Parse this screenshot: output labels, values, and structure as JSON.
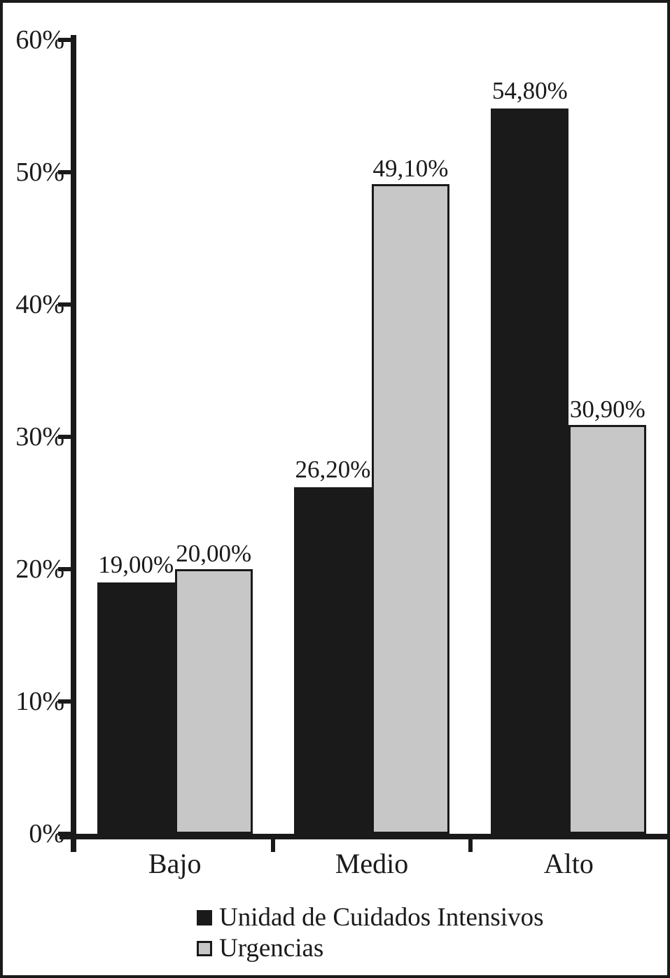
{
  "figure": {
    "background": "#ffffff",
    "frame_color": "#1a1a1a",
    "text_color": "#1a1a1a"
  },
  "chart_data": {
    "type": "bar",
    "title": "",
    "categories": [
      "Bajo",
      "Medio",
      "Alto"
    ],
    "series": [
      {
        "name": "Unidad de Cuidados Intensivos",
        "color": "#1a1a1a",
        "values": [
          19.0,
          26.2,
          54.8
        ],
        "value_labels": [
          "19,00%",
          "26,20%",
          "54,80%"
        ]
      },
      {
        "name": "Urgencias",
        "color": "#c7c7c7",
        "values": [
          20.0,
          49.1,
          30.9
        ],
        "value_labels": [
          "20,00%",
          "49,10%",
          "30,90%"
        ]
      }
    ],
    "ylim": [
      0,
      60
    ],
    "yticks": [
      {
        "value": 60,
        "label": "60%"
      },
      {
        "value": 50,
        "label": "50%"
      },
      {
        "value": 40,
        "label": "40%"
      },
      {
        "value": 30,
        "label": "30%"
      },
      {
        "value": 20,
        "label": "20%"
      },
      {
        "value": 10,
        "label": "10%"
      },
      {
        "value": 0,
        "label": "0%"
      }
    ],
    "grid": false,
    "legend_position": "bottom"
  }
}
